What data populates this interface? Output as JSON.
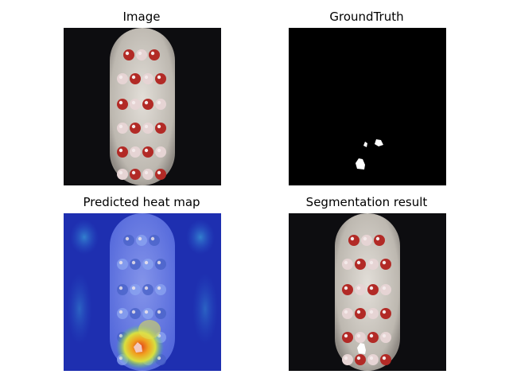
{
  "panels": [
    {
      "title": "Image"
    },
    {
      "title": "GroundTruth"
    },
    {
      "title": "Predicted heat map"
    },
    {
      "title": "Segmentation result"
    }
  ],
  "colors": {
    "page_background": "#ffffff",
    "image_background": "#0d0d10",
    "brush_head": "#cfcbc4",
    "bristle_red": "#b22a26",
    "bristle_white": "#e6d4d4",
    "mask_background": "#000000",
    "mask_foreground": "#ffffff",
    "heat_cold": "#1e2fb0",
    "heat_mid": "#3fb0e0",
    "heat_hot": "#e03a1a"
  }
}
